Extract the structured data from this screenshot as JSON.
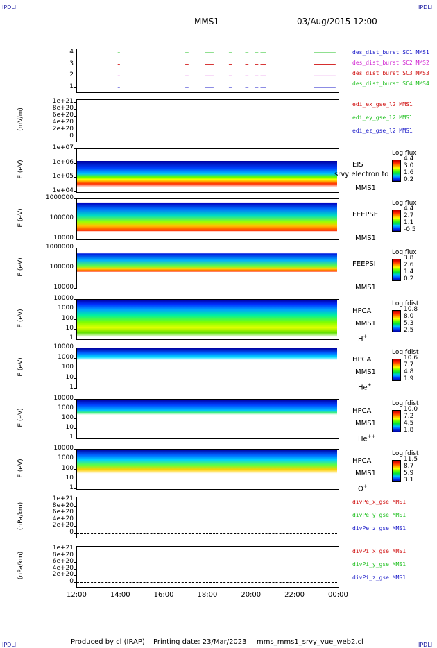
{
  "corners": {
    "tl": "IPDLI",
    "tr": "IPDLI",
    "bl": "IPDLI",
    "br": "IPDLI"
  },
  "header": {
    "spacecraft": "MMS1",
    "datetime": "03/Aug/2015 12:00"
  },
  "footer": {
    "produced": "Produced by cl (IRAP)",
    "printing": "Printing date: 23/Mar/2023",
    "script": "mms_mms1_srvy_vue_web2.cl"
  },
  "colors": {
    "sc1": "#1a1ac8",
    "sc2": "#d020d0",
    "sc3": "#d01010",
    "sc4": "#20c020",
    "ex": "#d01010",
    "ey": "#20c020",
    "ez": "#1a1ac8"
  },
  "chart_data": [
    {
      "type": "line",
      "panel": "burst",
      "yticks": [
        "4",
        "3",
        "2",
        "1"
      ],
      "series": [
        {
          "name": "des_dist_burst SC1 MMS1",
          "level": 1,
          "color": "#1a1ac8"
        },
        {
          "name": "des_dist_burst SC2 MMS2",
          "level": 2,
          "color": "#d020d0"
        },
        {
          "name": "des_dist_burst SC3 MMS3",
          "level": 3,
          "color": "#d01010"
        },
        {
          "name": "des_dist_burst SC4 MMS4",
          "level": 4,
          "color": "#20c020"
        }
      ],
      "intervals_hours": [
        [
          13.9,
          14.0
        ],
        [
          17.0,
          17.15
        ],
        [
          17.9,
          18.3
        ],
        [
          19.0,
          19.15
        ],
        [
          19.75,
          19.9
        ],
        [
          20.2,
          20.35
        ],
        [
          20.45,
          20.7
        ],
        [
          22.9,
          23.9
        ]
      ]
    },
    {
      "type": "line",
      "panel": "efield",
      "ylabel": "(mV/m)",
      "yticks": [
        "1e+21",
        "8e+20",
        "6e+20",
        "4e+20",
        "2e+20",
        "0"
      ],
      "series": [
        {
          "name": "edi_ex_gse_l2 MMS1",
          "color": "#d01010"
        },
        {
          "name": "edi_ey_gse_l2 MMS1",
          "color": "#20c020"
        },
        {
          "name": "edi_ez_gse_l2 MMS1",
          "color": "#1a1ac8"
        }
      ]
    },
    {
      "type": "heatmap",
      "panel": "eis",
      "ylabel": "E (eV)",
      "yticks": [
        "1e+07",
        "1e+06",
        "1e+05",
        "1e+04"
      ],
      "instrument": "EIS",
      "overlay": "srvy electron to",
      "sc": "MMS1",
      "colorbar": {
        "title": "Log flux",
        "ticks": [
          "4.4",
          "3.0",
          "1.6",
          "0.2"
        ]
      }
    },
    {
      "type": "heatmap",
      "panel": "feepse",
      "ylabel": "E (eV)",
      "yticks": [
        "1000000",
        "100000",
        "10000"
      ],
      "instrument": "FEEPSE",
      "sc": "MMS1",
      "colorbar": {
        "title": "Log flux",
        "ticks": [
          "4.4",
          "2.7",
          "1.1",
          "-0.5"
        ]
      }
    },
    {
      "type": "heatmap",
      "panel": "feepsi",
      "ylabel": "E (eV)",
      "yticks": [
        "1000000",
        "100000",
        "10000"
      ],
      "instrument": "FEEPSI",
      "sc": "MMS1",
      "colorbar": {
        "title": "Log flux",
        "ticks": [
          "3.8",
          "2.6",
          "1.4",
          "0.2"
        ]
      }
    },
    {
      "type": "heatmap",
      "panel": "hpca_h",
      "ylabel": "E (eV)",
      "yticks": [
        "10000",
        "1000",
        "100",
        "10",
        "1"
      ],
      "instrument": "HPCA",
      "sc": "MMS1",
      "species": "H",
      "charge": "+",
      "colorbar": {
        "title": "Log fdist",
        "ticks": [
          "10.8",
          "8.0",
          "5.3",
          "2.5"
        ]
      }
    },
    {
      "type": "heatmap",
      "panel": "hpca_he1",
      "ylabel": "E (eV)",
      "yticks": [
        "10000",
        "1000",
        "100",
        "10",
        "1"
      ],
      "instrument": "HPCA",
      "sc": "MMS1",
      "species": "He",
      "charge": "+",
      "colorbar": {
        "title": "Log fdist",
        "ticks": [
          "10.6",
          "7.7",
          "4.8",
          "1.9"
        ]
      }
    },
    {
      "type": "heatmap",
      "panel": "hpca_he2",
      "ylabel": "E (eV)",
      "yticks": [
        "10000",
        "1000",
        "100",
        "10",
        "1"
      ],
      "instrument": "HPCA",
      "sc": "MMS1",
      "species": "He",
      "charge": "++",
      "colorbar": {
        "title": "Log fdist",
        "ticks": [
          "10.0",
          "7.2",
          "4.5",
          "1.8"
        ]
      }
    },
    {
      "type": "heatmap",
      "panel": "hpca_o",
      "ylabel": "E (eV)",
      "yticks": [
        "10000",
        "1000",
        "100",
        "10",
        "1"
      ],
      "instrument": "HPCA",
      "sc": "MMS1",
      "species": "O",
      "charge": "+",
      "colorbar": {
        "title": "Log fdist",
        "ticks": [
          "11.5",
          "8.7",
          "5.9",
          "3.1"
        ]
      }
    },
    {
      "type": "line",
      "panel": "divpe",
      "ylabel": "(nPa/km)",
      "yticks": [
        "1e+21",
        "8e+20",
        "6e+20",
        "4e+20",
        "2e+20",
        "0"
      ],
      "series": [
        {
          "name": "divPe_x_gse MMS1",
          "color": "#d01010"
        },
        {
          "name": "divPe_y_gse MMS1",
          "color": "#20c020"
        },
        {
          "name": "divPe_z_gse MMS1",
          "color": "#1a1ac8"
        }
      ]
    },
    {
      "type": "line",
      "panel": "divpi",
      "ylabel": "(nPa/km)",
      "yticks": [
        "1e+21",
        "8e+20",
        "6e+20",
        "4e+20",
        "2e+20",
        "0"
      ],
      "series": [
        {
          "name": "divPi_x_gse MMS1",
          "color": "#d01010"
        },
        {
          "name": "divPi_y_gse MMS1",
          "color": "#20c020"
        },
        {
          "name": "divPi_z_gse MMS1",
          "color": "#1a1ac8"
        }
      ]
    }
  ],
  "xaxis": {
    "ticks": [
      "12:00",
      "14:00",
      "16:00",
      "18:00",
      "20:00",
      "22:00",
      "00:00"
    ],
    "range_hours": [
      12,
      24
    ]
  }
}
